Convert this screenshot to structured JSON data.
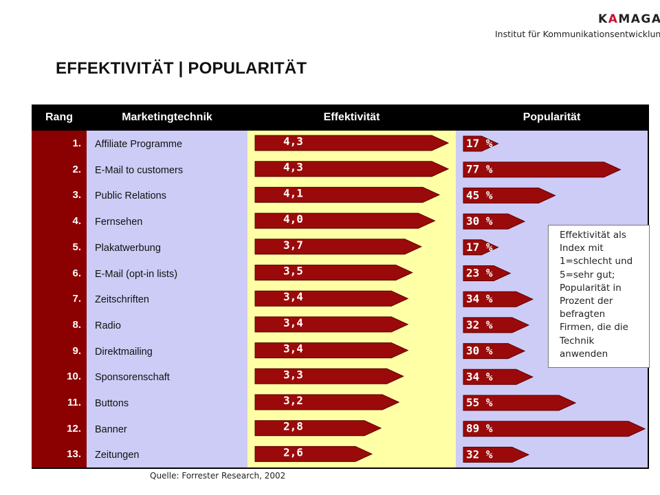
{
  "logo": {
    "brand_prefix": "K",
    "brand_accent": "A",
    "brand_suffix": "MAGA",
    "subtitle": "Institut für Kommunikationsentwicklung"
  },
  "title": "EFFEKTIVITÄT | POPULARITÄT",
  "headers": {
    "rank": "Rang",
    "technique": "Marketingtechnik",
    "effectiveness": "Effektivität",
    "popularity": "Popularität"
  },
  "note": "Effektivität als Index mit 1=schlecht und 5=sehr gut; Popularität in Prozent der befragten Firmen, die die Technik anwenden",
  "source": "Quelle: Forrester Research, 2002",
  "colors": {
    "bar": "#9b0a0a",
    "rank_col": "#8b0000",
    "tech_col": "#cdccf6",
    "eff_col": "#ffffa6",
    "pop_col": "#cdccf6",
    "header_bg": "#000000"
  },
  "chart_data": {
    "type": "table",
    "columns": [
      "Rang",
      "Marketingtechnik",
      "Effektivität",
      "Popularität"
    ],
    "rows": [
      {
        "rank": "1.",
        "technique": "Affiliate Programme",
        "effectiveness": 4.3,
        "effectiveness_label": "4,3",
        "popularity": 17,
        "popularity_label": "17 %"
      },
      {
        "rank": "2.",
        "technique": "E-Mail to customers",
        "effectiveness": 4.3,
        "effectiveness_label": "4,3",
        "popularity": 77,
        "popularity_label": "77 %"
      },
      {
        "rank": "3.",
        "technique": "Public Relations",
        "effectiveness": 4.1,
        "effectiveness_label": "4,1",
        "popularity": 45,
        "popularity_label": "45 %"
      },
      {
        "rank": "4.",
        "technique": "Fernsehen",
        "effectiveness": 4.0,
        "effectiveness_label": "4,0",
        "popularity": 30,
        "popularity_label": "30 %"
      },
      {
        "rank": "5.",
        "technique": "Plakatwerbung",
        "effectiveness": 3.7,
        "effectiveness_label": "3,7",
        "popularity": 17,
        "popularity_label": "17 %"
      },
      {
        "rank": "6.",
        "technique": "E-Mail (opt-in lists)",
        "effectiveness": 3.5,
        "effectiveness_label": "3,5",
        "popularity": 23,
        "popularity_label": "23 %"
      },
      {
        "rank": "7.",
        "technique": "Zeitschriften",
        "effectiveness": 3.4,
        "effectiveness_label": "3,4",
        "popularity": 34,
        "popularity_label": "34 %"
      },
      {
        "rank": "8.",
        "technique": "Radio",
        "effectiveness": 3.4,
        "effectiveness_label": "3,4",
        "popularity": 32,
        "popularity_label": "32 %"
      },
      {
        "rank": "9.",
        "technique": "Direktmailing",
        "effectiveness": 3.4,
        "effectiveness_label": "3,4",
        "popularity": 30,
        "popularity_label": "30 %"
      },
      {
        "rank": "10.",
        "technique": "Sponsorenschaft",
        "effectiveness": 3.3,
        "effectiveness_label": "3,3",
        "popularity": 34,
        "popularity_label": "34 %"
      },
      {
        "rank": "11.",
        "technique": "Buttons",
        "effectiveness": 3.2,
        "effectiveness_label": "3,2",
        "popularity": 55,
        "popularity_label": "55 %"
      },
      {
        "rank": "12.",
        "technique": "Banner",
        "effectiveness": 2.8,
        "effectiveness_label": "2,8",
        "popularity": 89,
        "popularity_label": "89 %"
      },
      {
        "rank": "13.",
        "technique": "Zeitungen",
        "effectiveness": 2.6,
        "effectiveness_label": "2,6",
        "popularity": 32,
        "popularity_label": "32 %"
      }
    ]
  }
}
